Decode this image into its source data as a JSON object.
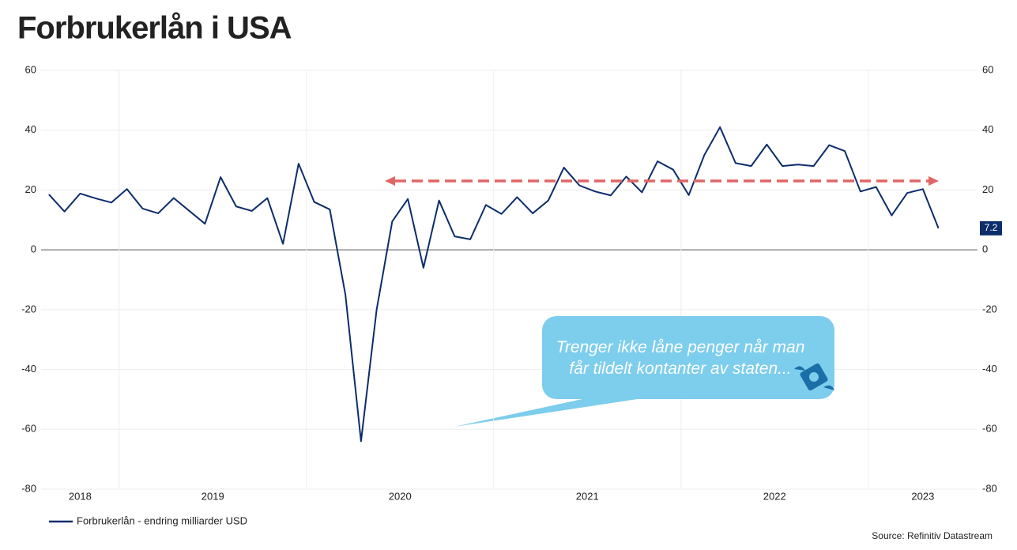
{
  "chart_data": {
    "type": "line",
    "title": "Forbrukerlån i USA",
    "year_labels": [
      "2018",
      "2019",
      "2020",
      "2021",
      "2022",
      "2023"
    ],
    "series": [
      {
        "name": "Forbrukerlån - endring milliarder USD",
        "color": "#0d2d6b",
        "values": [
          18.5,
          12.8,
          18.8,
          17.2,
          15.8,
          20.3,
          13.8,
          12.2,
          17.3,
          13,
          8.7,
          24.3,
          14.5,
          13,
          17.3,
          2,
          28.8,
          16,
          13.5,
          -15,
          -64,
          -20,
          9.5,
          17,
          -6,
          16.5,
          4.5,
          3.5,
          15,
          12,
          17.6,
          12.2,
          16.5,
          27.5,
          21.5,
          19.5,
          18.2,
          24.5,
          19.2,
          29.6,
          26.8,
          18.3,
          31.7,
          41,
          29,
          28,
          35.2,
          28,
          28.5,
          28,
          35,
          33,
          19.5,
          21,
          11.5,
          19,
          20.3,
          7.2
        ]
      }
    ],
    "ylim": [
      -80,
      60
    ],
    "yticks": [
      -80,
      -60,
      -40,
      -20,
      0,
      20,
      40,
      60
    ],
    "grid": true,
    "annotation": "Trenger ikke låne penger når man får tildelt kontanter av staten...",
    "source": "Source: Refinitiv Datastream"
  }
}
